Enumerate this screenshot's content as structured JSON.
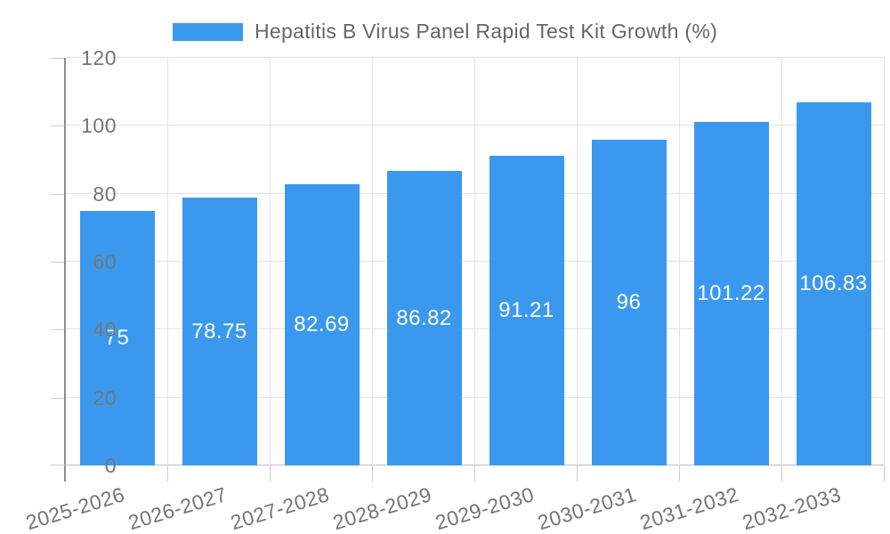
{
  "chart_data": {
    "type": "bar",
    "title": "Hepatitis B Virus Panel Rapid Test Kit Growth (%)",
    "categories": [
      "2025-2026",
      "2026-2027",
      "2027-2028",
      "2028-2029",
      "2029-2030",
      "2030-2031",
      "2031-2032",
      "2032-2033"
    ],
    "values": [
      75,
      78.75,
      82.69,
      86.82,
      91.21,
      96,
      101.22,
      106.83
    ],
    "value_labels": [
      "75",
      "78.75",
      "82.69",
      "86.82",
      "91.21",
      "96",
      "101.22",
      "106.83"
    ],
    "xlabel": "",
    "ylabel": "",
    "ylim": [
      0,
      120
    ],
    "yticks": [
      0,
      20,
      40,
      60,
      80,
      100,
      120
    ],
    "grid": true,
    "legend_position": "top"
  },
  "colors": {
    "bar": "#3a99ee",
    "bar_label": "#ffffff",
    "legend_text": "#666666",
    "axis_label": "#757575",
    "gridline": "#e3e3e3",
    "y_axis_line": "#8c8c8c",
    "x_axis_line": "#bdbdbd",
    "tick": "#cccccc",
    "background": "#ffffff"
  }
}
